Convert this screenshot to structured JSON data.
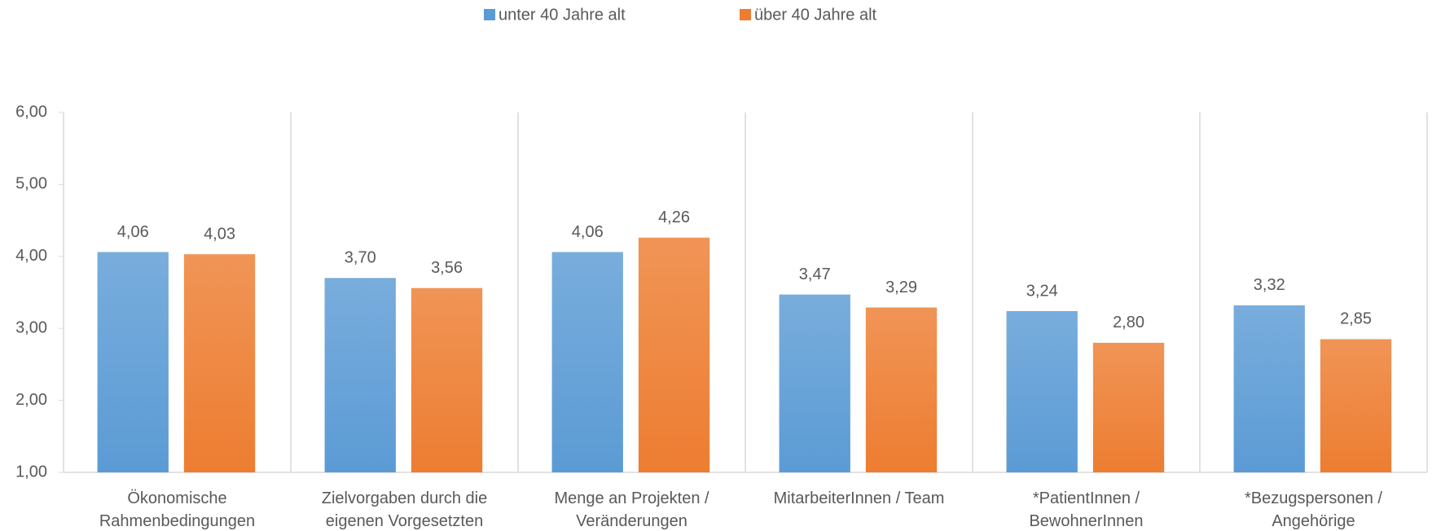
{
  "chart_data": {
    "type": "bar",
    "categories": [
      "Ökonomische Rahmenbedingungen",
      "Zielvorgaben durch die eigenen Vorgesetzten",
      "Menge an Projekten / Veränderungen",
      "MitarbeiterInnen / Team",
      "*PatientInnen / BewohnerInnen",
      "*Bezugspersonen / Angehörige"
    ],
    "series": [
      {
        "name": "unter 40 Jahre alt",
        "color": "#5b9bd5",
        "values": [
          4.06,
          3.7,
          4.06,
          3.47,
          3.24,
          3.32
        ],
        "value_labels": [
          "4,06",
          "3,70",
          "4,06",
          "3,47",
          "3,24",
          "3,32"
        ]
      },
      {
        "name": "über 40 Jahre alt",
        "color": "#ed7d31",
        "values": [
          4.03,
          3.56,
          4.26,
          3.29,
          2.8,
          2.85
        ],
        "value_labels": [
          "4,03",
          "3,56",
          "4,26",
          "3,29",
          "2,80",
          "2,85"
        ]
      }
    ],
    "ylim": [
      1,
      6
    ],
    "yticks": [
      {
        "value": 1,
        "label": "1,00"
      },
      {
        "value": 2,
        "label": "2,00"
      },
      {
        "value": 3,
        "label": "3,00"
      },
      {
        "value": 4,
        "label": "4,00"
      },
      {
        "value": 5,
        "label": "5,00"
      },
      {
        "value": 6,
        "label": "6,00"
      }
    ],
    "legend": "top",
    "category_separators": true
  }
}
